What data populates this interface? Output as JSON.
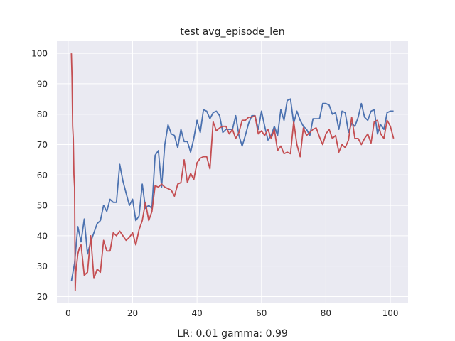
{
  "chart_data": {
    "type": "line",
    "title": "test avg_episode_len",
    "xlabel": "LR: 0.01 gamma: 0.99",
    "ylabel": "",
    "xlim": [
      -3.5,
      105.5
    ],
    "ylim": [
      18,
      104
    ],
    "xticks": [
      0,
      20,
      40,
      60,
      80,
      100
    ],
    "yticks": [
      20,
      30,
      40,
      50,
      60,
      70,
      80,
      90,
      100
    ],
    "grid": true,
    "background": "#eaeaf2",
    "series": [
      {
        "color": "#4c72b0",
        "points": [
          [
            1,
            25
          ],
          [
            2,
            31
          ],
          [
            3,
            43
          ],
          [
            4,
            38
          ],
          [
            5,
            45.5
          ],
          [
            6,
            34
          ],
          [
            7,
            38
          ],
          [
            8,
            41
          ],
          [
            9,
            44
          ],
          [
            10,
            45
          ],
          [
            11,
            50
          ],
          [
            12,
            48
          ],
          [
            13,
            52
          ],
          [
            14,
            51
          ],
          [
            15,
            51
          ],
          [
            16,
            63.5
          ],
          [
            17,
            58
          ],
          [
            18,
            54
          ],
          [
            19,
            50
          ],
          [
            20,
            52
          ],
          [
            21,
            45
          ],
          [
            22,
            46.5
          ],
          [
            23,
            57
          ],
          [
            24,
            49
          ],
          [
            25,
            50
          ],
          [
            26,
            49
          ],
          [
            27,
            66.5
          ],
          [
            28,
            68
          ],
          [
            29,
            56
          ],
          [
            30,
            70
          ],
          [
            31,
            76.5
          ],
          [
            32,
            73.5
          ],
          [
            33,
            73
          ],
          [
            34,
            69
          ],
          [
            35,
            75
          ],
          [
            36,
            71
          ],
          [
            37,
            71
          ],
          [
            38,
            67.5
          ],
          [
            39,
            72
          ],
          [
            40,
            78
          ],
          [
            41,
            74
          ],
          [
            42,
            81.5
          ],
          [
            43,
            81
          ],
          [
            44,
            78.5
          ],
          [
            45,
            80.5
          ],
          [
            46,
            81
          ],
          [
            47,
            79.5
          ],
          [
            48,
            74
          ],
          [
            49,
            75
          ],
          [
            50,
            75
          ],
          [
            51,
            75
          ],
          [
            52,
            79.5
          ],
          [
            53,
            73
          ],
          [
            54,
            69.5
          ],
          [
            55,
            73
          ],
          [
            56,
            77
          ],
          [
            57,
            79.5
          ],
          [
            58,
            79.5
          ],
          [
            59,
            75
          ],
          [
            60,
            81
          ],
          [
            61,
            76
          ],
          [
            62,
            71.5
          ],
          [
            63,
            73
          ],
          [
            64,
            76
          ],
          [
            65,
            73
          ],
          [
            66,
            81.5
          ],
          [
            67,
            78
          ],
          [
            68,
            84.5
          ],
          [
            69,
            85
          ],
          [
            70,
            77
          ],
          [
            71,
            81
          ],
          [
            72,
            78
          ],
          [
            73,
            76
          ],
          [
            74,
            75
          ],
          [
            75,
            73
          ],
          [
            76,
            78.5
          ],
          [
            77,
            78.5
          ],
          [
            78,
            78.5
          ],
          [
            79,
            83.5
          ],
          [
            80,
            83.5
          ],
          [
            81,
            83
          ],
          [
            82,
            80
          ],
          [
            83,
            80.5
          ],
          [
            84,
            75
          ],
          [
            85,
            81
          ],
          [
            86,
            80.5
          ],
          [
            87,
            74
          ],
          [
            88,
            77
          ],
          [
            89,
            76
          ],
          [
            90,
            79
          ],
          [
            91,
            83.5
          ],
          [
            92,
            79
          ],
          [
            93,
            78
          ],
          [
            94,
            81
          ],
          [
            95,
            81.5
          ],
          [
            96,
            73.5
          ],
          [
            97,
            76.5
          ],
          [
            98,
            75
          ],
          [
            99,
            80.5
          ],
          [
            100,
            81
          ],
          [
            101,
            81
          ]
        ]
      },
      {
        "color": "#c44e52",
        "points": [
          [
            1,
            100
          ],
          [
            1.2,
            92
          ],
          [
            1.4,
            76
          ],
          [
            1.6,
            72
          ],
          [
            1.8,
            60
          ],
          [
            2,
            56
          ],
          [
            2.2,
            22
          ],
          [
            2.4,
            28
          ],
          [
            3,
            34
          ],
          [
            3.5,
            36
          ],
          [
            4,
            37
          ],
          [
            4.5,
            32
          ],
          [
            5,
            27
          ],
          [
            6,
            28
          ],
          [
            7,
            40
          ],
          [
            8,
            26
          ],
          [
            9,
            29
          ],
          [
            10,
            28
          ],
          [
            11,
            38.5
          ],
          [
            12,
            35
          ],
          [
            13,
            35
          ],
          [
            14,
            41
          ],
          [
            15,
            40
          ],
          [
            16,
            41.5
          ],
          [
            17,
            40
          ],
          [
            18,
            38.5
          ],
          [
            19,
            39.5
          ],
          [
            20,
            41
          ],
          [
            21,
            37
          ],
          [
            22,
            42
          ],
          [
            23,
            45
          ],
          [
            24,
            51
          ],
          [
            25,
            45
          ],
          [
            26,
            48
          ],
          [
            27,
            56.5
          ],
          [
            28,
            56
          ],
          [
            29,
            57
          ],
          [
            30,
            56
          ],
          [
            31,
            55.5
          ],
          [
            32,
            55
          ],
          [
            33,
            53
          ],
          [
            34,
            57
          ],
          [
            35,
            57.5
          ],
          [
            36,
            65
          ],
          [
            37,
            57.5
          ],
          [
            38,
            60.5
          ],
          [
            39,
            58.5
          ],
          [
            40,
            64
          ],
          [
            41,
            65.5
          ],
          [
            42,
            66
          ],
          [
            43,
            66
          ],
          [
            44,
            62
          ],
          [
            45,
            77.5
          ],
          [
            46,
            74.5
          ],
          [
            47,
            75.5
          ],
          [
            48,
            76
          ],
          [
            49,
            76
          ],
          [
            50,
            73.5
          ],
          [
            51,
            75
          ],
          [
            52,
            72
          ],
          [
            53,
            74
          ],
          [
            54,
            78
          ],
          [
            55,
            78
          ],
          [
            56,
            79
          ],
          [
            57,
            79
          ],
          [
            58,
            79.5
          ],
          [
            59,
            73.5
          ],
          [
            60,
            74.5
          ],
          [
            61,
            73
          ],
          [
            62,
            75
          ],
          [
            63,
            72
          ],
          [
            64,
            75
          ],
          [
            65,
            68
          ],
          [
            66,
            69.5
          ],
          [
            67,
            67
          ],
          [
            68,
            67.5
          ],
          [
            69,
            67
          ],
          [
            70,
            77.5
          ],
          [
            71,
            70
          ],
          [
            72,
            66
          ],
          [
            73,
            75.5
          ],
          [
            74,
            73
          ],
          [
            75,
            74
          ],
          [
            76,
            75
          ],
          [
            77,
            75.5
          ],
          [
            78,
            72.5
          ],
          [
            79,
            70
          ],
          [
            80,
            73.5
          ],
          [
            81,
            75
          ],
          [
            82,
            72
          ],
          [
            83,
            73
          ],
          [
            84,
            67.5
          ],
          [
            85,
            70
          ],
          [
            86,
            69
          ],
          [
            87,
            71.5
          ],
          [
            88,
            79
          ],
          [
            89,
            72
          ],
          [
            90,
            72
          ],
          [
            91,
            70
          ],
          [
            92,
            72
          ],
          [
            93,
            73.5
          ],
          [
            94,
            70.5
          ],
          [
            95,
            77.5
          ],
          [
            96,
            78
          ],
          [
            97,
            73.5
          ],
          [
            98,
            72
          ],
          [
            99,
            78
          ],
          [
            100,
            76
          ],
          [
            101,
            72
          ]
        ]
      }
    ]
  }
}
